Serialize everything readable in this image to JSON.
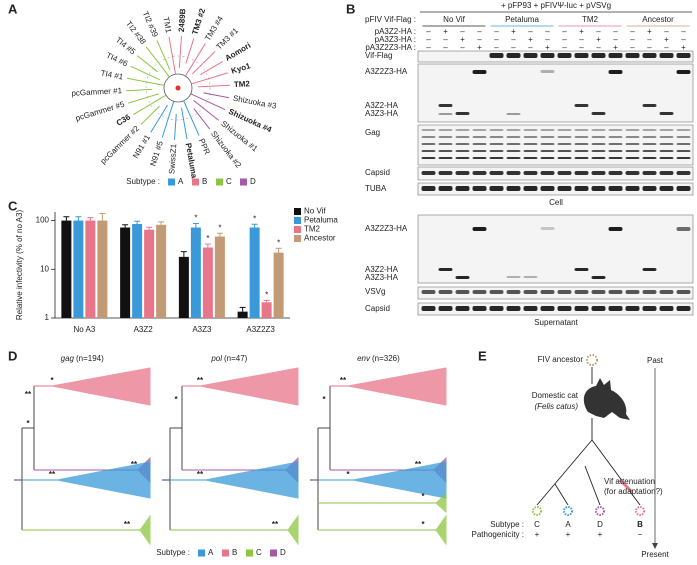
{
  "panels": {
    "a": "A",
    "b": "B",
    "c": "C",
    "d": "D",
    "e": "E"
  },
  "subtype_legend": {
    "label": "Subtype :",
    "items": [
      {
        "name": "A",
        "color": "#3a9ad9"
      },
      {
        "name": "B",
        "color": "#e8758a"
      },
      {
        "name": "C",
        "color": "#8dc63f"
      },
      {
        "name": "D",
        "color": "#a45aa8"
      }
    ]
  },
  "panel_a": {
    "leaves": [
      {
        "label": "TM1",
        "subtype": "B",
        "bold": false
      },
      {
        "label": "2489B",
        "subtype": "B",
        "bold": true
      },
      {
        "label": "TM3 #2",
        "subtype": "B",
        "bold": true
      },
      {
        "label": "TM3 #4",
        "subtype": "B",
        "bold": false
      },
      {
        "label": "TM3 #1",
        "subtype": "B",
        "bold": false
      },
      {
        "label": "Aomori",
        "subtype": "B",
        "bold": true
      },
      {
        "label": "Kyo1",
        "subtype": "B",
        "bold": true
      },
      {
        "label": "TM2",
        "subtype": "B",
        "bold": true
      },
      {
        "label": "Shizuoka #3",
        "subtype": "D",
        "bold": false
      },
      {
        "label": "Shizuoka #4",
        "subtype": "D",
        "bold": true
      },
      {
        "label": "Shizuoka #1",
        "subtype": "D",
        "bold": false
      },
      {
        "label": "Shizuoka #2",
        "subtype": "D",
        "bold": false
      },
      {
        "label": "PPR",
        "subtype": "A",
        "bold": false
      },
      {
        "label": "Petaluma",
        "subtype": "A",
        "bold": true
      },
      {
        "label": "SwissZ1",
        "subtype": "A",
        "bold": false
      },
      {
        "label": "N91 #5",
        "subtype": "A",
        "bold": false
      },
      {
        "label": "N91 #1",
        "subtype": "A",
        "bold": false
      },
      {
        "label": "pcGammer #2",
        "subtype": "C",
        "bold": false
      },
      {
        "label": "C36",
        "subtype": "C",
        "bold": true
      },
      {
        "label": "pcGammer #5",
        "subtype": "C",
        "bold": false
      },
      {
        "label": "pcGammer #1",
        "subtype": "C",
        "bold": false
      },
      {
        "label": "TI4 #1",
        "subtype": "C",
        "bold": false
      },
      {
        "label": "TI4 #6",
        "subtype": "C",
        "bold": false
      },
      {
        "label": "TI4 #5",
        "subtype": "C",
        "bold": false
      },
      {
        "label": "TI2 #38",
        "subtype": "C",
        "bold": false
      },
      {
        "label": "TI2 #39",
        "subtype": "C",
        "bold": false
      }
    ]
  },
  "panel_b": {
    "header": "+ pFP93 + pFIVΨ-luc + pVSVg",
    "vif_label": "pFIV Vif-Flag :",
    "groups": [
      {
        "name": "No Vif",
        "color": "#222222"
      },
      {
        "name": "Petaluma",
        "color": "#3a9ad9"
      },
      {
        "name": "TM2",
        "color": "#e8758a"
      },
      {
        "name": "Ancestor",
        "color": "#c39a76"
      }
    ],
    "plasmids": [
      {
        "label": "pA3Z2-HA :",
        "signs": [
          "–",
          "+",
          "–",
          "–",
          "–",
          "+",
          "–",
          "–",
          "–",
          "+",
          "–",
          "–",
          "–",
          "+",
          "–",
          "–"
        ]
      },
      {
        "label": "pA3Z3-HA :",
        "signs": [
          "–",
          "–",
          "+",
          "–",
          "–",
          "–",
          "+",
          "–",
          "–",
          "–",
          "+",
          "–",
          "–",
          "–",
          "+",
          "–"
        ]
      },
      {
        "label": "pA3Z2Z3-HA :",
        "signs": [
          "–",
          "–",
          "–",
          "+",
          "–",
          "–",
          "–",
          "+",
          "–",
          "–",
          "–",
          "+",
          "–",
          "–",
          "–",
          "+"
        ]
      }
    ],
    "cell_blots": [
      "Vif-Flag",
      "A3Z2Z3-HA",
      "A3Z2-HA",
      "A3Z3-HA",
      "Gag",
      "Capsid",
      "TUBA"
    ],
    "cell_label": "Cell",
    "sup_blots": [
      "A3Z2Z3-HA",
      "A3Z2-HA",
      "A3Z3-HA",
      "VSVg",
      "Capsid"
    ],
    "sup_label": "Supernatant"
  },
  "chart_data": {
    "type": "bar",
    "ylabel": "Relative infectivity (% of no A3)",
    "categories": [
      "No A3",
      "A3Z2",
      "A3Z3",
      "A3Z2Z3"
    ],
    "log": true,
    "ylim": [
      1,
      150
    ],
    "yticks": [
      1,
      10,
      100
    ],
    "legend": "upper right",
    "series": [
      {
        "name": "No Vif",
        "color": "#111111",
        "values": [
          100,
          72,
          18,
          1.35
        ],
        "errors": [
          20,
          10,
          5,
          0.3
        ],
        "asterisks": [
          null,
          null,
          null,
          null
        ]
      },
      {
        "name": "Petaluma",
        "color": "#3a9ad9",
        "values": [
          100,
          85,
          72,
          72
        ],
        "errors": [
          20,
          12,
          15,
          12
        ],
        "asterisks": [
          null,
          null,
          "*",
          "*"
        ]
      },
      {
        "name": "TM2",
        "color": "#e8758a",
        "values": [
          100,
          65,
          28,
          2.1
        ],
        "errors": [
          15,
          8,
          5,
          0.2
        ],
        "asterisks": [
          null,
          null,
          "*",
          "*"
        ]
      },
      {
        "name": "Ancestor",
        "color": "#c39a76",
        "values": [
          100,
          82,
          47,
          22
        ],
        "errors": [
          40,
          12,
          8,
          5
        ],
        "asterisks": [
          null,
          null,
          "*",
          "*"
        ]
      }
    ]
  },
  "panel_d": {
    "trees": [
      {
        "gene": "gag",
        "count": "(n=194)",
        "stars": [
          {
            "text": "*",
            "color": "#e8758a"
          },
          {
            "text": "**",
            "color": "#222222"
          },
          {
            "text": "*",
            "color": "#222222"
          },
          {
            "text": "**",
            "color": "#a45aa8"
          },
          {
            "text": "**",
            "color": "#3a9ad9"
          },
          {
            "text": "**",
            "color": "#8dc63f"
          }
        ]
      },
      {
        "gene": "pol",
        "count": "(n=47)",
        "stars": [
          {
            "text": "**",
            "color": "#e8758a"
          },
          {
            "text": "*",
            "color": "#222222"
          },
          {
            "text": "**",
            "color": "#3a9ad9"
          },
          {
            "text": "**",
            "color": "#8dc63f"
          }
        ]
      },
      {
        "gene": "env",
        "count": "(n=326)",
        "stars": [
          {
            "text": "**",
            "color": "#e8758a"
          },
          {
            "text": "*",
            "color": "#222222"
          },
          {
            "text": "**",
            "color": "#a45aa8"
          },
          {
            "text": "*",
            "color": "#3a9ad9"
          },
          {
            "text": "*",
            "color": "#8dc63f"
          },
          {
            "text": "*",
            "color": "#8dc63f"
          }
        ]
      }
    ]
  },
  "panel_e": {
    "ancestor": "FIV ancestor",
    "past": "Past",
    "host": "Domestic cat",
    "host_latin": "(Felis catus)",
    "attenuation": "Vif attenuation",
    "attenuation2": "(for adaptation?)",
    "present": "Present",
    "subtype_label": "Subtype :",
    "pathogenicity_label": "Pathogenicity :",
    "tips": [
      {
        "subtype": "C",
        "pathogenicity": "+"
      },
      {
        "subtype": "A",
        "pathogenicity": "+"
      },
      {
        "subtype": "D",
        "pathogenicity": "+"
      },
      {
        "subtype": "B",
        "pathogenicity": "−"
      }
    ]
  }
}
